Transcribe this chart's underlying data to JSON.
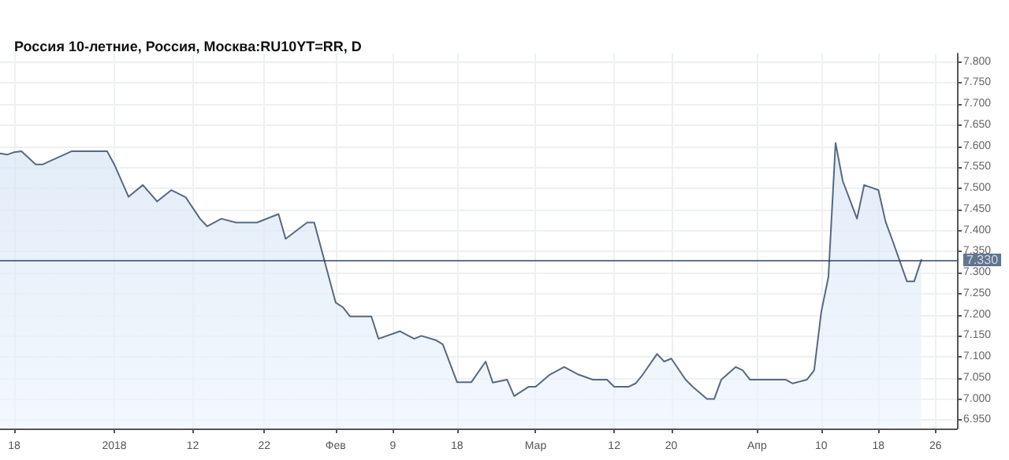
{
  "chart_data": {
    "type": "area",
    "title": "Россия 10-летние, Россия, Москва:RU10YT=RR, D",
    "x": [
      "2017-12-16",
      "2017-12-17",
      "2017-12-18",
      "2017-12-19",
      "2017-12-21",
      "2017-12-22",
      "2017-12-26",
      "2017-12-31",
      "2018-01-01",
      "2018-01-03",
      "2018-01-05",
      "2018-01-07",
      "2018-01-09",
      "2018-01-11",
      "2018-01-13",
      "2018-01-14",
      "2018-01-16",
      "2018-01-18",
      "2018-01-21",
      "2018-01-24",
      "2018-01-25",
      "2018-01-28",
      "2018-01-29",
      "2018-02-01",
      "2018-02-02",
      "2018-02-03",
      "2018-02-06",
      "2018-02-07",
      "2018-02-10",
      "2018-02-12",
      "2018-02-13",
      "2018-02-15",
      "2018-02-16",
      "2018-02-18",
      "2018-02-20",
      "2018-02-22",
      "2018-02-23",
      "2018-02-25",
      "2018-02-26",
      "2018-02-28",
      "2018-03-01",
      "2018-03-03",
      "2018-03-05",
      "2018-03-07",
      "2018-03-09",
      "2018-03-11",
      "2018-03-12",
      "2018-03-14",
      "2018-03-15",
      "2018-03-16",
      "2018-03-18",
      "2018-03-19",
      "2018-03-20",
      "2018-03-22",
      "2018-03-23",
      "2018-03-25",
      "2018-03-26",
      "2018-03-27",
      "2018-03-29",
      "2018-03-30",
      "2018-03-31",
      "2018-04-05",
      "2018-04-06",
      "2018-04-08",
      "2018-04-09",
      "2018-04-10",
      "2018-04-11",
      "2018-04-12",
      "2018-04-13",
      "2018-04-15",
      "2018-04-16",
      "2018-04-18",
      "2018-04-19",
      "2018-04-20",
      "2018-04-22",
      "2018-04-23",
      "2018-04-24"
    ],
    "series": [
      {
        "color": "#566a80",
        "values": [
          7.583,
          7.58,
          7.586,
          7.588,
          7.557,
          7.557,
          7.588,
          7.588,
          7.557,
          7.48,
          7.508,
          7.469,
          7.496,
          7.479,
          7.428,
          7.41,
          7.428,
          7.419,
          7.419,
          7.439,
          7.38,
          7.419,
          7.419,
          7.229,
          7.218,
          7.196,
          7.196,
          7.143,
          7.161,
          7.143,
          7.15,
          7.14,
          7.13,
          7.04,
          7.04,
          7.089,
          7.039,
          7.046,
          7.007,
          7.029,
          7.029,
          7.058,
          7.076,
          7.058,
          7.046,
          7.046,
          7.029,
          7.029,
          7.037,
          7.058,
          7.107,
          7.089,
          7.096,
          7.046,
          7.029,
          7.0,
          7.0,
          7.046,
          7.076,
          7.068,
          7.046,
          7.046,
          7.037,
          7.046,
          7.068,
          7.207,
          7.29,
          7.608,
          7.518,
          7.428,
          7.508,
          7.496,
          7.421,
          7.375,
          7.279,
          7.279,
          7.33
        ]
      }
    ],
    "xlim": [
      "2017-12-16",
      "2018-04-29"
    ],
    "xticks": [
      {
        "value": "2017-12-18",
        "label": "18"
      },
      {
        "value": "2018-01-01",
        "label": "2018"
      },
      {
        "value": "2018-01-12",
        "label": "12"
      },
      {
        "value": "2018-01-22",
        "label": "22"
      },
      {
        "value": "2018-02-01",
        "label": "Фев"
      },
      {
        "value": "2018-02-09",
        "label": "9"
      },
      {
        "value": "2018-02-18",
        "label": "18"
      },
      {
        "value": "2018-03-01",
        "label": "Мар"
      },
      {
        "value": "2018-03-12",
        "label": "12"
      },
      {
        "value": "2018-03-20",
        "label": "20"
      },
      {
        "value": "2018-04-01",
        "label": "Апр"
      },
      {
        "value": "2018-04-10",
        "label": "10"
      },
      {
        "value": "2018-04-18",
        "label": "18"
      },
      {
        "value": "2018-04-26",
        "label": "26"
      }
    ],
    "ylim": [
      6.93,
      7.82
    ],
    "yticks": [
      {
        "value": 6.95,
        "label": "6.950"
      },
      {
        "value": 7.0,
        "label": "7.000"
      },
      {
        "value": 7.05,
        "label": "7.050"
      },
      {
        "value": 7.1,
        "label": "7.100"
      },
      {
        "value": 7.15,
        "label": "7.150"
      },
      {
        "value": 7.2,
        "label": "7.200"
      },
      {
        "value": 7.25,
        "label": "7.250"
      },
      {
        "value": 7.3,
        "label": "7.300"
      },
      {
        "value": 7.35,
        "label": "7.350"
      },
      {
        "value": 7.4,
        "label": "7.400"
      },
      {
        "value": 7.45,
        "label": "7.450"
      },
      {
        "value": 7.5,
        "label": "7.500"
      },
      {
        "value": 7.55,
        "label": "7.550"
      },
      {
        "value": 7.6,
        "label": "7.600"
      },
      {
        "value": 7.65,
        "label": "7.650"
      },
      {
        "value": 7.7,
        "label": "7.700"
      },
      {
        "value": 7.75,
        "label": "7.750"
      },
      {
        "value": 7.8,
        "label": "7.800"
      }
    ],
    "ref_lines": [
      {
        "axis": "y",
        "value": 7.33,
        "label": "7.330",
        "color": "#1e3a5f"
      }
    ],
    "grid": true,
    "marker": "none",
    "line_style": "solid"
  }
}
